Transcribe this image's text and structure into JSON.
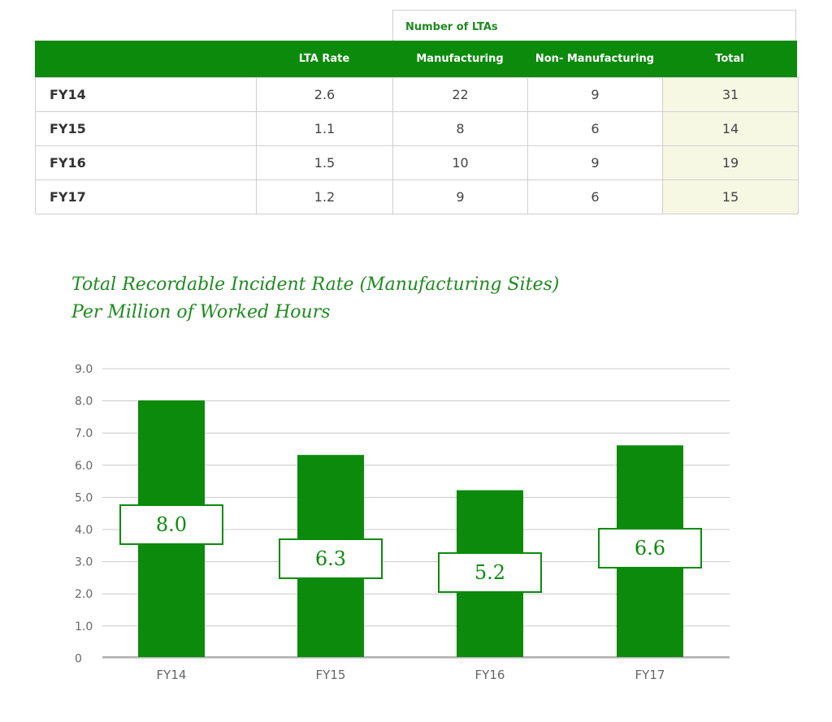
{
  "table": {
    "group_header": "Number of LTAs",
    "columns": [
      "",
      "LTA Rate",
      "Manufacturing",
      "Non- Manufacturing",
      "Total"
    ],
    "rows": [
      {
        "year": "FY14",
        "lta_rate": "2.6",
        "manufacturing": "22",
        "non_manufacturing": "9",
        "total": "31"
      },
      {
        "year": "FY15",
        "lta_rate": "1.1",
        "manufacturing": "8",
        "non_manufacturing": "6",
        "total": "14"
      },
      {
        "year": "FY16",
        "lta_rate": "1.5",
        "manufacturing": "10",
        "non_manufacturing": "9",
        "total": "19"
      },
      {
        "year": "FY17",
        "lta_rate": "1.2",
        "manufacturing": "9",
        "non_manufacturing": "6",
        "total": "15"
      }
    ]
  },
  "chart_data": {
    "type": "bar",
    "title_lines": [
      "Total Recordable Incident Rate (Manufacturing Sites)",
      "Per Million of Worked Hours"
    ],
    "categories": [
      "FY14",
      "FY15",
      "FY16",
      "FY17"
    ],
    "values": [
      8.0,
      6.3,
      5.2,
      6.6
    ],
    "value_labels": [
      "8.0",
      "6.3",
      "5.2",
      "6.6"
    ],
    "y_ticks": [
      "9.0",
      "8.0",
      "7.0",
      "6.0",
      "5.0",
      "4.0",
      "3.0",
      "2.0",
      "1.0",
      "0"
    ],
    "ylim": [
      0,
      9
    ],
    "grid": true,
    "xlabel": "",
    "ylabel": "",
    "colors": {
      "bar": "#0c8a0c",
      "title": "#1f8a1f",
      "grid": "#c8c8c8",
      "header_bg": "#0c8a0c",
      "total_cell": "#f7f8e4"
    }
  }
}
